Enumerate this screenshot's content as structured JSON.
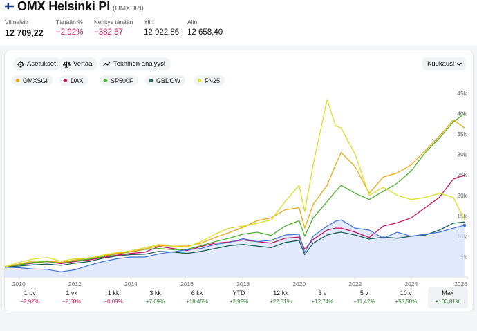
{
  "header": {
    "title": "OMX Helsinki PI",
    "ticker": "(OMXHPI)",
    "stats": [
      {
        "label": "Viimeisin",
        "value": "12 709,22",
        "tone": "plain"
      },
      {
        "label": "Tänään %",
        "value": "−2,92%",
        "tone": "neg"
      },
      {
        "label": "Kehitys tänään",
        "value": "−382,57",
        "tone": "neg"
      },
      {
        "label": "Ylin",
        "value": "12 922,86",
        "tone": "plain"
      },
      {
        "label": "Alin",
        "value": "12 658,40",
        "tone": "plain"
      }
    ]
  },
  "toolbar": {
    "settings_label": "Asetukset",
    "compare_label": "Vertaa",
    "technical_label": "Tekninen analyysi",
    "period_select": "Kuukausi"
  },
  "colors": {
    "OMXSGI": "#e8a90c",
    "DAX": "#c2185b",
    "SP500F": "#4caf2a",
    "GBDOW": "#1e5e52",
    "FN25": "#d9e021",
    "OMXHPI": "#3f6fd8"
  },
  "legend": [
    "OMXSGI",
    "DAX",
    "SP500F",
    "GBDOW",
    "FN25"
  ],
  "chart_data": {
    "type": "line",
    "x": [
      2009.5,
      2010,
      2010.5,
      2011,
      2011.5,
      2012,
      2012.5,
      2013,
      2013.5,
      2014,
      2014.5,
      2015,
      2015.5,
      2016,
      2016.5,
      2017,
      2017.5,
      2018,
      2018.5,
      2019,
      2019.5,
      2020,
      2020.2,
      2020.5,
      2021,
      2021.3,
      2021.5,
      2022,
      2022.5,
      2023,
      2023.5,
      2024,
      2024.5,
      2025,
      2025.5,
      2025.9
    ],
    "series": [
      {
        "name": "OMXSGI",
        "values": [
          2500,
          3200,
          3900,
          4000,
          3600,
          4200,
          4700,
          5200,
          5800,
          6300,
          6900,
          7700,
          7600,
          7600,
          8300,
          9700,
          10900,
          12200,
          13800,
          14500,
          16500,
          17000,
          12000,
          17800,
          22500,
          27500,
          30500,
          27000,
          20500,
          24500,
          25500,
          27500,
          31000,
          34500,
          38500,
          36500
        ]
      },
      {
        "name": "DAX",
        "values": [
          2600,
          3000,
          3400,
          3800,
          3300,
          3800,
          4200,
          4800,
          5400,
          5800,
          6100,
          7500,
          7000,
          6500,
          7500,
          8300,
          8600,
          9100,
          8700,
          8300,
          9500,
          9800,
          6800,
          9200,
          11500,
          12000,
          12000,
          11000,
          9700,
          12500,
          13300,
          14500,
          17000,
          19500,
          24000,
          25000
        ]
      },
      {
        "name": "SP500F",
        "values": [
          2600,
          3000,
          3600,
          3800,
          3500,
          4000,
          4400,
          5000,
          5700,
          6200,
          6800,
          7000,
          6700,
          6800,
          7700,
          8700,
          9500,
          10500,
          11000,
          10200,
          12500,
          13800,
          10000,
          14500,
          18500,
          21000,
          22500,
          20500,
          19000,
          21000,
          23000,
          26000,
          30500,
          34000,
          38000,
          40000
        ]
      },
      {
        "name": "GBDOW",
        "values": [
          2500,
          2700,
          3000,
          3200,
          2900,
          3400,
          3800,
          4600,
          5200,
          5500,
          5600,
          6300,
          6100,
          5800,
          6300,
          7000,
          7700,
          8000,
          7600,
          7200,
          8500,
          9000,
          5500,
          8300,
          10300,
          10800,
          11000,
          10300,
          9300,
          9800,
          9500,
          10000,
          10300,
          11500,
          13200,
          13500
        ]
      },
      {
        "name": "FN25",
        "values": [
          2500,
          3600,
          4400,
          4800,
          3900,
          4500,
          4600,
          5400,
          6000,
          6400,
          7200,
          8000,
          7600,
          7300,
          8700,
          10500,
          12000,
          12500,
          13200,
          14000,
          18500,
          22500,
          16000,
          27500,
          43500,
          37000,
          36500,
          30000,
          20000,
          22000,
          20000,
          19000,
          19500,
          20500,
          19500,
          14000
        ]
      },
      {
        "name": "OMXHPI",
        "values": [
          2400,
          2300,
          2000,
          1900,
          1300,
          1800,
          2900,
          3800,
          4500,
          4900,
          4900,
          5700,
          6200,
          6700,
          7000,
          8000,
          8500,
          9400,
          8700,
          9000,
          10300,
          10500,
          6000,
          10000,
          12500,
          13700,
          14000,
          12000,
          11500,
          9500,
          11000,
          10000,
          10500,
          11000,
          12000,
          12700
        ]
      }
    ],
    "y_ticks": [
      "45k",
      "40k",
      "35k",
      "30k",
      "25k",
      "20k",
      "15k",
      "10k",
      "5k"
    ],
    "y_tick_values": [
      45000,
      40000,
      35000,
      30000,
      25000,
      20000,
      15000,
      10000,
      5000
    ],
    "x_ticks": [
      "2010",
      "2012",
      "2014",
      "2016",
      "2018",
      "2020",
      "2022",
      "2024",
      "2026"
    ],
    "x_tick_values": [
      2010,
      2012,
      2014,
      2016,
      2018,
      2020,
      2022,
      2024,
      2026
    ],
    "ylim": [
      0,
      45000
    ],
    "grid": false
  },
  "ranges": [
    {
      "label": "1 pv",
      "value": "−2,92%",
      "tone": "neg",
      "active": false
    },
    {
      "label": "1 vk",
      "value": "−2,68%",
      "tone": "neg",
      "active": false
    },
    {
      "label": "1 kk",
      "value": "−0,09%",
      "tone": "neg",
      "active": false
    },
    {
      "label": "3 kk",
      "value": "+7,69%",
      "tone": "pos",
      "active": false
    },
    {
      "label": "6 kk",
      "value": "+18,45%",
      "tone": "pos",
      "active": false
    },
    {
      "label": "YTD",
      "value": "+2,99%",
      "tone": "pos",
      "active": false
    },
    {
      "label": "12 kk",
      "value": "+22,31%",
      "tone": "pos",
      "active": false
    },
    {
      "label": "3 v",
      "value": "+12,74%",
      "tone": "pos",
      "active": false
    },
    {
      "label": "5 v",
      "value": "+11,42%",
      "tone": "pos",
      "active": false
    },
    {
      "label": "10 v",
      "value": "+58,58%",
      "tone": "pos",
      "active": false
    },
    {
      "label": "Max",
      "value": "+133,81%",
      "tone": "pos",
      "active": true
    }
  ]
}
